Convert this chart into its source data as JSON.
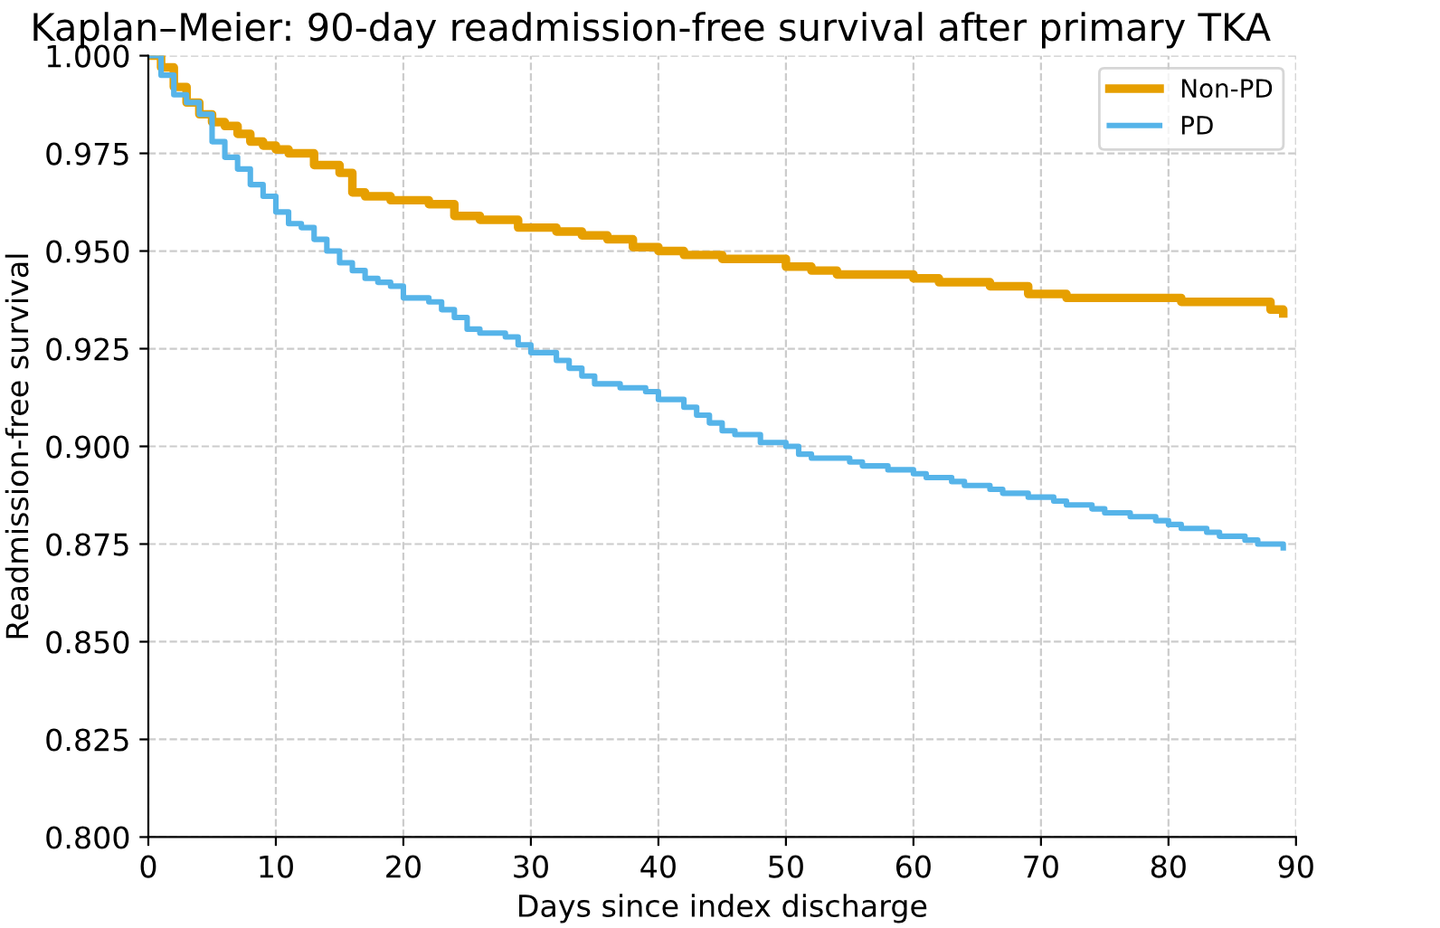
{
  "chart_data": {
    "type": "step",
    "title": "Kaplan–Meier: 90-day readmission-free survival after primary TKA",
    "xlabel": "Days since index discharge",
    "ylabel": "Readmission-free survival",
    "xlim": [
      0,
      90
    ],
    "xticks": [
      0,
      10,
      20,
      30,
      40,
      50,
      60,
      70,
      80,
      90
    ],
    "ylim": [
      0.8,
      1.0
    ],
    "yticks": [
      {
        "value": 0.8,
        "label": "0.800"
      },
      {
        "value": 0.825,
        "label": "0.825"
      },
      {
        "value": 0.85,
        "label": "0.850"
      },
      {
        "value": 0.875,
        "label": "0.875"
      },
      {
        "value": 0.9,
        "label": "0.900"
      },
      {
        "value": 0.925,
        "label": "0.925"
      },
      {
        "value": 0.95,
        "label": "0.950"
      },
      {
        "value": 0.975,
        "label": "0.975"
      },
      {
        "value": 1.0,
        "label": "1.000"
      }
    ],
    "grid": true,
    "legend": "top right",
    "series": [
      {
        "name": "Non-PD",
        "color": "#e69f00",
        "x": [
          0,
          1,
          2,
          3,
          4,
          5,
          6,
          7,
          8,
          9,
          10,
          11,
          13,
          15,
          16,
          17,
          19,
          22,
          24,
          26,
          29,
          32,
          34,
          36,
          38,
          40,
          42,
          45,
          50,
          52,
          54,
          60,
          62,
          66,
          69,
          72,
          81,
          88,
          89
        ],
        "values": [
          1.0,
          0.997,
          0.992,
          0.988,
          0.985,
          0.983,
          0.982,
          0.98,
          0.978,
          0.977,
          0.976,
          0.975,
          0.972,
          0.97,
          0.965,
          0.964,
          0.963,
          0.962,
          0.959,
          0.958,
          0.956,
          0.955,
          0.954,
          0.953,
          0.951,
          0.95,
          0.949,
          0.948,
          0.946,
          0.945,
          0.944,
          0.943,
          0.942,
          0.941,
          0.939,
          0.938,
          0.937,
          0.935,
          0.934
        ]
      },
      {
        "name": "PD",
        "color": "#56b4e9",
        "x": [
          0,
          1,
          2,
          3,
          4,
          5,
          6,
          7,
          8,
          9,
          10,
          11,
          12,
          13,
          14,
          15,
          16,
          17,
          18,
          19,
          20,
          22,
          23,
          24,
          25,
          26,
          28,
          29,
          30,
          32,
          33,
          34,
          35,
          37,
          39,
          40,
          42,
          43,
          44,
          45,
          46,
          48,
          50,
          51,
          52,
          55,
          56,
          58,
          60,
          61,
          63,
          64,
          66,
          67,
          69,
          71,
          72,
          74,
          75,
          77,
          79,
          80,
          81,
          83,
          84,
          86,
          87,
          89
        ],
        "values": [
          1.0,
          0.995,
          0.99,
          0.988,
          0.985,
          0.978,
          0.974,
          0.971,
          0.967,
          0.964,
          0.96,
          0.957,
          0.956,
          0.953,
          0.95,
          0.947,
          0.945,
          0.943,
          0.942,
          0.941,
          0.938,
          0.937,
          0.935,
          0.933,
          0.93,
          0.929,
          0.928,
          0.926,
          0.924,
          0.922,
          0.92,
          0.918,
          0.916,
          0.915,
          0.914,
          0.912,
          0.91,
          0.908,
          0.906,
          0.904,
          0.903,
          0.901,
          0.9,
          0.898,
          0.897,
          0.896,
          0.895,
          0.894,
          0.893,
          0.892,
          0.891,
          0.89,
          0.889,
          0.888,
          0.887,
          0.886,
          0.885,
          0.884,
          0.883,
          0.882,
          0.881,
          0.88,
          0.879,
          0.878,
          0.877,
          0.876,
          0.875,
          0.874
        ]
      }
    ]
  }
}
